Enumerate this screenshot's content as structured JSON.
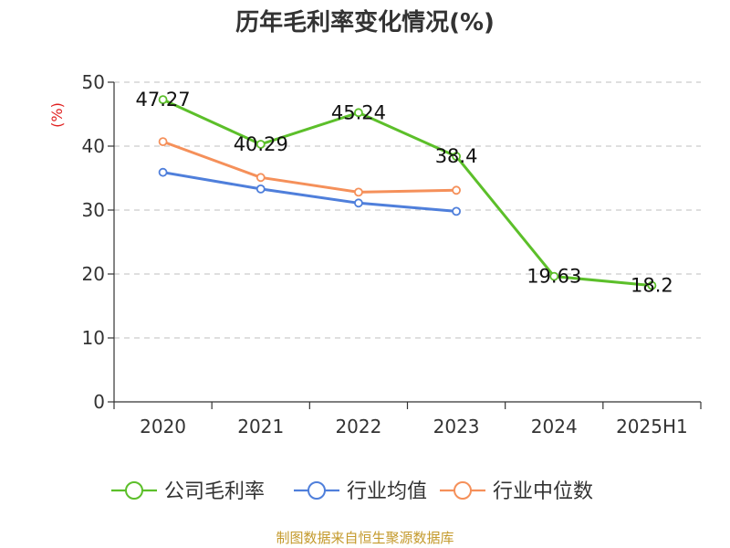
{
  "chart_data": {
    "type": "line",
    "title": "历年毛利率变化情况(%)",
    "ylabel": "(%)",
    "xlabel": "",
    "categories": [
      "2020",
      "2021",
      "2022",
      "2023",
      "2024",
      "2025H1"
    ],
    "ylim": [
      0,
      50
    ],
    "yticks": [
      0,
      10,
      20,
      30,
      40,
      50
    ],
    "grid": true,
    "legend_position": "bottom",
    "series": [
      {
        "name": "公司毛利率",
        "color": "#5cbf2a",
        "values": [
          47.27,
          40.29,
          45.24,
          38.4,
          19.63,
          18.2
        ],
        "labels": [
          "47.27",
          "40.29",
          "45.24",
          "38.4",
          "19.63",
          "18.2"
        ]
      },
      {
        "name": "行业均值",
        "color": "#4f7fdb",
        "values": [
          35.9,
          33.3,
          31.1,
          29.8,
          null,
          null
        ]
      },
      {
        "name": "行业中位数",
        "color": "#f5905a",
        "values": [
          40.7,
          35.1,
          32.8,
          33.1,
          null,
          null
        ]
      }
    ]
  },
  "colors": {
    "axis": "#333333",
    "grid": "#cccccc",
    "unit_label": "#e02020",
    "source": "#c49a2c"
  },
  "source": "制图数据来自恒生聚源数据库"
}
